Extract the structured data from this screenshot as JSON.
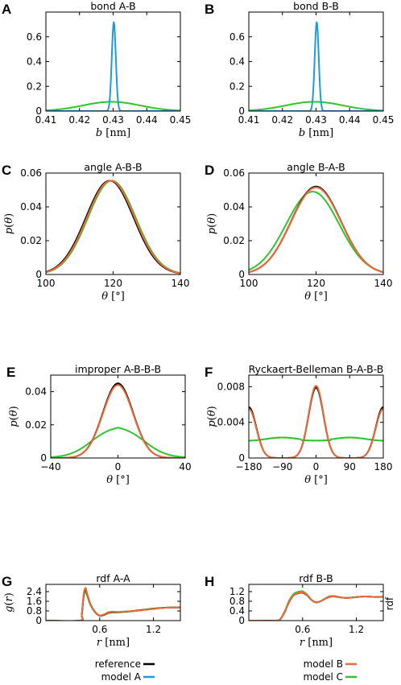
{
  "colors": {
    "reference": "#000000",
    "model_a": "#1e9be0",
    "model_b": "#ee6a3a",
    "model_c": "#2ec52e"
  },
  "side_label": "rdf",
  "legend": [
    {
      "key": "reference",
      "label": "reference",
      "color": "#000000"
    },
    {
      "key": "model_a",
      "label": "model A",
      "color": "#1e9be0"
    },
    {
      "key": "model_b",
      "label": "model B",
      "color": "#ee6a3a"
    },
    {
      "key": "model_c",
      "label": "model C",
      "color": "#2ec52e"
    }
  ],
  "chart_data": [
    {
      "id": "A",
      "letter": "A",
      "type": "line",
      "title": "bond A-B",
      "xlabel": "b [nm]",
      "ylabel": "",
      "xlim": [
        0.41,
        0.45
      ],
      "ylim": [
        0,
        0.8
      ],
      "xticks": [
        "0.41",
        "0.42",
        "0.43",
        "0.44",
        "0.45"
      ],
      "xtick_values": [
        0.41,
        0.42,
        0.43,
        0.44,
        0.45
      ],
      "yticks": [
        "0",
        "0.2",
        "0.4",
        "0.6"
      ],
      "ytick_values": [
        0,
        0.2,
        0.4,
        0.6
      ],
      "series": [
        {
          "key": "model_a",
          "kind": "gauss",
          "params": [
            0.4302,
            0.0006,
            0.72
          ]
        },
        {
          "key": "model_c",
          "kind": "gauss",
          "params": [
            0.4295,
            0.0085,
            0.075
          ]
        }
      ]
    },
    {
      "id": "B",
      "letter": "B",
      "type": "line",
      "title": "bond B-B",
      "xlabel": "b [nm]",
      "ylabel": "",
      "xlim": [
        0.41,
        0.45
      ],
      "ylim": [
        0,
        0.8
      ],
      "xticks": [
        "0.41",
        "0.42",
        "0.43",
        "0.44",
        "0.45"
      ],
      "xtick_values": [
        0.41,
        0.42,
        0.43,
        0.44,
        0.45
      ],
      "yticks": [
        "0",
        "0.2",
        "0.4",
        "0.6"
      ],
      "ytick_values": [
        0,
        0.2,
        0.4,
        0.6
      ],
      "series": [
        {
          "key": "model_a",
          "kind": "gauss",
          "params": [
            0.4302,
            0.0006,
            0.72
          ]
        },
        {
          "key": "model_c",
          "kind": "gauss",
          "params": [
            0.4295,
            0.0085,
            0.075
          ]
        }
      ]
    },
    {
      "id": "C",
      "letter": "C",
      "type": "line",
      "title": "angle A-B-B",
      "xlabel": "θ [°]",
      "ylabel": "p(θ)",
      "xlim": [
        100,
        140
      ],
      "ylim": [
        0,
        0.06
      ],
      "xticks": [
        "100",
        "120",
        "140"
      ],
      "xtick_values": [
        100,
        120,
        140
      ],
      "yticks": [
        "0",
        "0.02",
        "0.04",
        "0.06"
      ],
      "ytick_values": [
        0,
        0.02,
        0.04,
        0.06
      ],
      "series": [
        {
          "key": "reference",
          "kind": "gauss",
          "params": [
            119,
            7.1,
            0.0555
          ]
        },
        {
          "key": "model_b",
          "kind": "gauss",
          "params": [
            119.3,
            7.1,
            0.0555
          ]
        },
        {
          "key": "model_c",
          "kind": "gauss",
          "params": [
            119.6,
            7.1,
            0.0555
          ]
        }
      ]
    },
    {
      "id": "D",
      "letter": "D",
      "type": "line",
      "title": "angle B-A-B",
      "xlabel": "θ [°]",
      "ylabel": "p(θ)",
      "xlim": [
        100,
        140
      ],
      "ylim": [
        0,
        0.06
      ],
      "xticks": [
        "100",
        "120",
        "140"
      ],
      "xtick_values": [
        100,
        120,
        140
      ],
      "yticks": [
        "0",
        "0.02",
        "0.04",
        "0.06"
      ],
      "ytick_values": [
        0,
        0.02,
        0.04,
        0.06
      ],
      "series": [
        {
          "key": "reference",
          "kind": "gauss",
          "params": [
            120,
            7.4,
            0.052
          ]
        },
        {
          "key": "model_b",
          "kind": "gauss",
          "params": [
            120,
            7.4,
            0.0515
          ]
        },
        {
          "key": "model_c",
          "kind": "gauss",
          "params": [
            119,
            7.9,
            0.049
          ]
        }
      ]
    },
    {
      "id": "E",
      "letter": "E",
      "type": "line",
      "title": "improper A-B-B-B",
      "xlabel": "θ [°]",
      "ylabel": "p(θ)",
      "xlim": [
        -40,
        40
      ],
      "ylim": [
        0,
        0.05
      ],
      "xticks": [
        "−40",
        "0",
        "40"
      ],
      "xtick_values": [
        -40,
        0,
        40
      ],
      "yticks": [
        "0",
        "0.02",
        "0.04"
      ],
      "ytick_values": [
        0,
        0.02,
        0.04
      ],
      "series": [
        {
          "key": "reference",
          "kind": "gauss",
          "params": [
            0,
            9,
            0.045
          ]
        },
        {
          "key": "model_b",
          "kind": "gauss",
          "params": [
            0,
            9,
            0.044
          ]
        },
        {
          "key": "model_c",
          "kind": "plateau",
          "params": [
            0,
            16,
            6.5,
            0.0183
          ]
        }
      ]
    },
    {
      "id": "F",
      "letter": "F",
      "type": "line",
      "title": "Ryckaert-Belleman B-A-B-B",
      "xlabel": "θ [°]",
      "ylabel": "p(θ)",
      "xlim": [
        -180,
        180
      ],
      "ylim": [
        0,
        0.0093
      ],
      "xticks": [
        "−180",
        "−90",
        "0",
        "90",
        "180"
      ],
      "xtick_values": [
        -180,
        -90,
        0,
        90,
        180
      ],
      "yticks": [
        "0",
        "0.004",
        "0.008"
      ],
      "ytick_values": [
        0,
        0.004,
        0.008
      ],
      "series": [
        {
          "key": "reference",
          "kind": "triple",
          "params": [
            20,
            0.0079,
            0.0057
          ]
        },
        {
          "key": "model_b",
          "kind": "triple",
          "params": [
            20,
            0.0081,
            0.0055
          ]
        },
        {
          "key": "model_c",
          "kind": "wavy",
          "params": [
            0.00195,
            0.00035,
            3e-05
          ]
        }
      ]
    },
    {
      "id": "G",
      "letter": "G",
      "type": "line",
      "title": "rdf A-A",
      "xlabel": "r [nm]",
      "ylabel": "g(r)",
      "xlim": [
        0,
        1.5
      ],
      "ylim": [
        0,
        3.0
      ],
      "xticks": [
        "0.6",
        "1.2"
      ],
      "xtick_values": [
        0.6,
        1.2
      ],
      "yticks": [
        "0",
        "0.8",
        "1.6",
        "2.4"
      ],
      "ytick_values": [
        0,
        0.8,
        1.6,
        2.4
      ],
      "series": [
        {
          "key": "reference",
          "kind": "points",
          "x": [
            0,
            0.38,
            0.4,
            0.42,
            0.44,
            0.46,
            0.5,
            0.55,
            0.6,
            0.65,
            0.7,
            0.75,
            0.8,
            0.9,
            1.0,
            1.1,
            1.2,
            1.3,
            1.4,
            1.5
          ],
          "y": [
            0,
            0,
            0.5,
            2.0,
            2.65,
            2.2,
            1.3,
            0.7,
            0.42,
            0.5,
            0.68,
            0.72,
            0.7,
            0.75,
            0.82,
            0.9,
            0.98,
            1.05,
            1.08,
            1.08
          ]
        },
        {
          "key": "model_b",
          "kind": "points",
          "x": [
            0,
            0.38,
            0.4,
            0.42,
            0.44,
            0.46,
            0.5,
            0.55,
            0.6,
            0.65,
            0.7,
            0.75,
            0.8,
            0.9,
            1.0,
            1.1,
            1.2,
            1.3,
            1.4,
            1.5
          ],
          "y": [
            0,
            0,
            0.5,
            2.1,
            2.72,
            2.25,
            1.32,
            0.72,
            0.43,
            0.52,
            0.7,
            0.74,
            0.72,
            0.76,
            0.8,
            0.88,
            0.97,
            1.04,
            1.08,
            1.08
          ]
        },
        {
          "key": "model_c",
          "kind": "points",
          "x": [
            0,
            0.38,
            0.4,
            0.42,
            0.44,
            0.46,
            0.5,
            0.55,
            0.6,
            0.65,
            0.7,
            0.75,
            0.8,
            0.9,
            1.0,
            1.1,
            1.2,
            1.3,
            1.4,
            1.5
          ],
          "y": [
            0,
            0,
            0.45,
            1.9,
            2.45,
            2.1,
            1.25,
            0.68,
            0.4,
            0.46,
            0.62,
            0.68,
            0.68,
            0.73,
            0.8,
            0.9,
            1.0,
            1.06,
            1.09,
            1.1
          ]
        }
      ]
    },
    {
      "id": "H",
      "letter": "H",
      "type": "line",
      "title": "rdf B-B",
      "xlabel": "r [nm]",
      "ylabel": "",
      "xlim": [
        0,
        1.5
      ],
      "ylim": [
        0,
        1.5
      ],
      "xticks": [
        "0.6",
        "1.2"
      ],
      "xtick_values": [
        0.6,
        1.2
      ],
      "yticks": [
        "0",
        "0.4",
        "0.8",
        "1.2"
      ],
      "ytick_values": [
        0,
        0.4,
        0.8,
        1.2
      ],
      "series": [
        {
          "key": "reference",
          "kind": "points",
          "x": [
            0,
            0.3,
            0.35,
            0.4,
            0.45,
            0.5,
            0.55,
            0.6,
            0.65,
            0.7,
            0.75,
            0.8,
            0.85,
            0.9,
            0.95,
            1.0,
            1.05,
            1.1,
            1.2,
            1.3,
            1.4,
            1.5
          ],
          "y": [
            0,
            0,
            0.05,
            0.35,
            0.78,
            1.05,
            1.13,
            1.15,
            1.05,
            0.85,
            0.76,
            0.8,
            0.9,
            0.98,
            1.0,
            0.97,
            0.95,
            0.94,
            0.97,
            1.0,
            0.98,
            0.98
          ]
        },
        {
          "key": "model_b",
          "kind": "points",
          "x": [
            0,
            0.3,
            0.35,
            0.4,
            0.45,
            0.5,
            0.55,
            0.6,
            0.65,
            0.7,
            0.75,
            0.8,
            0.85,
            0.9,
            0.95,
            1.0,
            1.05,
            1.1,
            1.2,
            1.3,
            1.4,
            1.5
          ],
          "y": [
            0,
            0,
            0.05,
            0.35,
            0.8,
            1.06,
            1.14,
            1.16,
            1.06,
            0.85,
            0.76,
            0.8,
            0.9,
            0.98,
            1.0,
            0.97,
            0.95,
            0.94,
            0.97,
            1.0,
            0.98,
            0.98
          ]
        },
        {
          "key": "model_c",
          "kind": "points",
          "x": [
            0,
            0.3,
            0.35,
            0.4,
            0.45,
            0.5,
            0.55,
            0.6,
            0.65,
            0.7,
            0.75,
            0.8,
            0.85,
            0.9,
            0.95,
            1.0,
            1.05,
            1.1,
            1.2,
            1.3,
            1.4,
            1.5
          ],
          "y": [
            0,
            0,
            0.06,
            0.38,
            0.83,
            1.1,
            1.19,
            1.21,
            1.08,
            0.86,
            0.75,
            0.8,
            0.91,
            1.0,
            1.02,
            0.98,
            0.95,
            0.94,
            0.98,
            1.0,
            0.98,
            0.99
          ]
        }
      ]
    }
  ]
}
